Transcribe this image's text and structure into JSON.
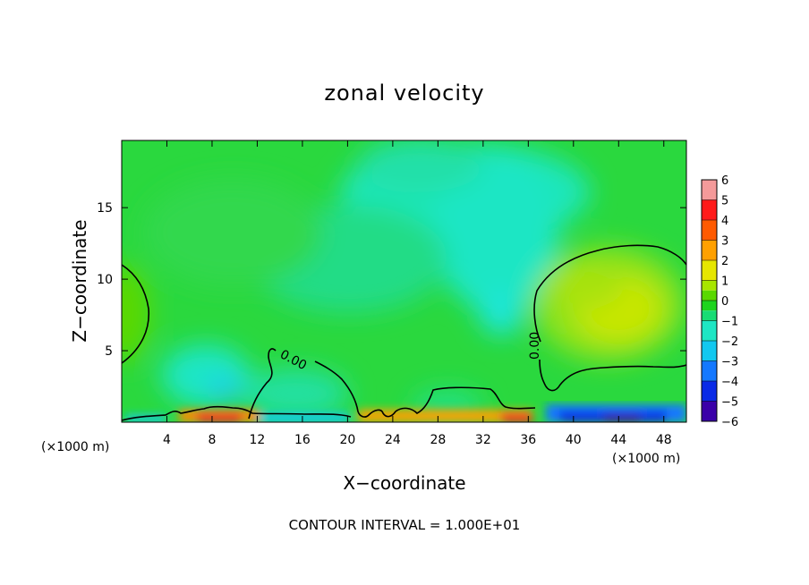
{
  "chart_data": {
    "type": "heatmap",
    "title": "zonal velocity",
    "xlabel": "X−coordinate",
    "ylabel": "Z−coordinate",
    "x_unit": "(×1000 m)",
    "x_unit_right": "(×1000 m)",
    "footer": "CONTOUR INTERVAL = 1.000E+01",
    "xlim": [
      0,
      50
    ],
    "ylim": [
      0,
      19.7
    ],
    "x_ticks": [
      4,
      8,
      12,
      16,
      20,
      24,
      28,
      32,
      36,
      40,
      44,
      48
    ],
    "x_tick_labels": [
      "4",
      "8",
      "12",
      "16",
      "20",
      "24",
      "28",
      "32",
      "36",
      "40",
      "44",
      "48"
    ],
    "y_ticks": [
      5,
      10,
      15
    ],
    "y_tick_labels": [
      "5",
      "10",
      "15"
    ],
    "colorbar": {
      "min": -6,
      "max": 6,
      "labels": [
        "6",
        "5",
        "4",
        "3",
        "2",
        "1",
        "0",
        "−1",
        "−2",
        "−3",
        "−4",
        "−5",
        "−6"
      ],
      "levels": [
        {
          "range": [
            5,
            6
          ],
          "color": "#f49a9a"
        },
        {
          "range": [
            4,
            5
          ],
          "color": "#ff1a1a"
        },
        {
          "range": [
            3,
            4
          ],
          "color": "#ff5a00"
        },
        {
          "range": [
            2,
            3
          ],
          "color": "#ffa000"
        },
        {
          "range": [
            1,
            2
          ],
          "color": "#e6e600"
        },
        {
          "range": [
            0.5,
            1
          ],
          "color": "#a8e600"
        },
        {
          "range": [
            0,
            0.5
          ],
          "color": "#5ad800"
        },
        {
          "range": [
            -0.5,
            0
          ],
          "color": "#1ed41e"
        },
        {
          "range": [
            -1,
            -0.5
          ],
          "color": "#18dc74"
        },
        {
          "range": [
            -2,
            -1
          ],
          "color": "#1ee6c4"
        },
        {
          "range": [
            -3,
            -2
          ],
          "color": "#12c8f0"
        },
        {
          "range": [
            -4,
            -3
          ],
          "color": "#1478ff"
        },
        {
          "range": [
            -5,
            -4
          ],
          "color": "#0a2ae6"
        },
        {
          "range": [
            -6,
            -5
          ],
          "color": "#3a00a8"
        },
        {
          "range": [
            -6.5,
            -6
          ],
          "color": "#8a2bb8"
        }
      ]
    },
    "contour_label": "0.00",
    "contour_label_2": "0.00"
  }
}
